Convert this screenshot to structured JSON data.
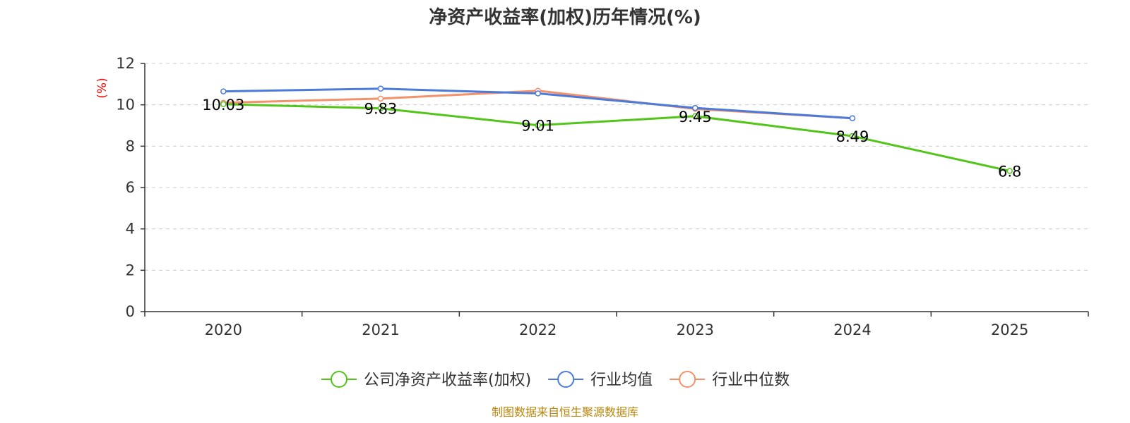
{
  "chart_data": {
    "type": "line",
    "title": "净资产收益率(加权)历年情况(%)",
    "ylabel": "(%)",
    "xlabel": "",
    "categories": [
      "2020",
      "2021",
      "2022",
      "2023",
      "2024",
      "2025"
    ],
    "ylim": [
      0,
      12
    ],
    "yticks": [
      0,
      2,
      4,
      6,
      8,
      10,
      12
    ],
    "grid": true,
    "legend_position": "bottom-center",
    "series": [
      {
        "name": "公司净资产收益率(加权)",
        "color": "#52c41a",
        "values": [
          10.03,
          9.83,
          9.01,
          9.45,
          8.49,
          6.8
        ],
        "labels": [
          "10.03",
          "9.83",
          "9.01",
          "9.45",
          "8.49",
          "6.8"
        ]
      },
      {
        "name": "行业均值",
        "color": "#4a7bdb",
        "values": [
          10.65,
          10.78,
          10.55,
          9.85,
          9.35,
          null
        ]
      },
      {
        "name": "行业中位数",
        "color": "#f4916a",
        "values": [
          10.1,
          10.3,
          10.68,
          9.8,
          9.35,
          null
        ]
      }
    ],
    "source": "制图数据来自恒生聚源数据库",
    "ylabel_color": "#ff0000",
    "source_color": "#b8860b"
  }
}
